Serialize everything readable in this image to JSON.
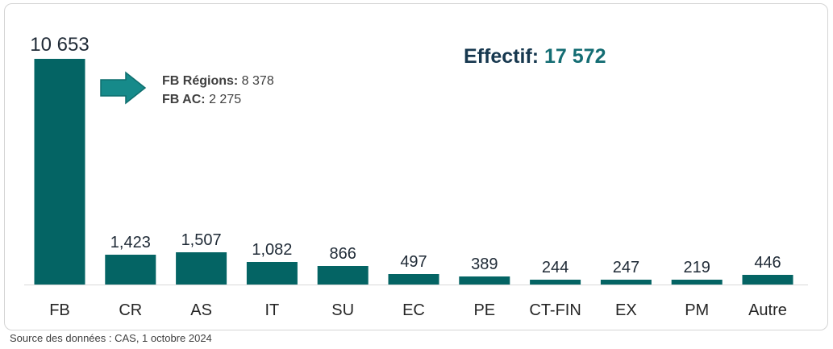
{
  "chart_data": {
    "type": "bar",
    "categories": [
      "FB",
      "CR",
      "AS",
      "IT",
      "SU",
      "EC",
      "PE",
      "CT-FIN",
      "EX",
      "PM",
      "Autre"
    ],
    "values": [
      10653,
      1423,
      1507,
      1082,
      866,
      497,
      389,
      244,
      247,
      219,
      446
    ],
    "data_labels": [
      "10 653",
      "1,423",
      "1,507",
      "1,082",
      "866",
      "497",
      "389",
      "244",
      "247",
      "219",
      "446"
    ],
    "bar_color": "#046464",
    "ylim": [
      0,
      10653
    ],
    "grid": false,
    "annotations": {
      "total_label": "Effectif:",
      "total_value": "17 572",
      "fb_regions_label": "FB Régions:",
      "fb_regions_value": "8 378",
      "fb_ac_label": "FB AC:",
      "fb_ac_value": "2 275"
    }
  },
  "footer": {
    "source": "Source des données : CAS, 1 octobre 2024"
  },
  "colors": {
    "accent": "#146d73",
    "title": "#17384f",
    "arrow": "#168a8a"
  }
}
